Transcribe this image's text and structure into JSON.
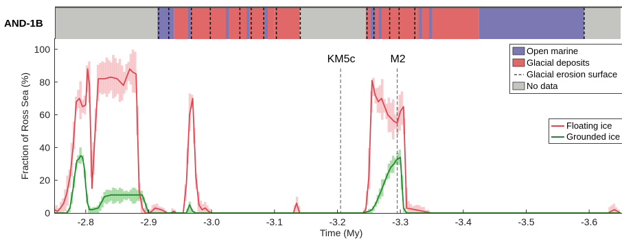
{
  "chart_data": {
    "type": "line",
    "core_band": {
      "name": "AND-1B",
      "segments": [
        {
          "from": -2.75,
          "to": -2.914,
          "env": "No data"
        },
        {
          "from": -2.914,
          "to": -2.94,
          "env": "Open marine"
        },
        {
          "from": -2.94,
          "to": -3.05,
          "env": "Glacial deposits"
        },
        {
          "from": -3.05,
          "to": -3.1,
          "env": "Glacial deposits"
        },
        {
          "from": -3.1,
          "to": -3.14,
          "env": "Glacial deposits"
        },
        {
          "from": -3.14,
          "to": -3.245,
          "env": "No data"
        },
        {
          "from": -3.245,
          "to": -3.252,
          "env": "Glacial deposits"
        },
        {
          "from": -3.252,
          "to": -3.26,
          "env": "Open marine"
        },
        {
          "from": -3.26,
          "to": -3.325,
          "env": "Glacial deposits"
        },
        {
          "from": -3.325,
          "to": -3.425,
          "env": "Glacial deposits"
        },
        {
          "from": -3.425,
          "to": -3.592,
          "env": "Open marine"
        },
        {
          "from": -3.592,
          "to": -3.65,
          "env": "No data"
        }
      ],
      "open_marine_slivers": [
        -2.965,
        -3.025,
        -3.058,
        -3.087,
        -3.268,
        -3.332,
        -3.348
      ],
      "erosion_surfaces": [
        -2.916,
        -2.932,
        -2.968,
        -2.998,
        -3.045,
        -3.063,
        -3.083,
        -3.103,
        -3.141,
        -3.247,
        -3.258,
        -3.283,
        -3.298,
        -3.323,
        -3.592
      ]
    },
    "markers": [
      {
        "label": "KM5c",
        "x": -3.205
      },
      {
        "label": "M2",
        "x": -3.295
      }
    ],
    "xlabel": "Time (My)",
    "ylabel": "Fraction of Ross Sea (%)",
    "xlim": [
      -2.75,
      -3.65
    ],
    "ylim": [
      0,
      100
    ],
    "xticks": [
      -2.8,
      -2.9,
      -3.0,
      -3.1,
      -3.2,
      -3.3,
      -3.4,
      -3.5,
      -3.6
    ],
    "xtick_labels": [
      "-2.8",
      "-2.9",
      "-3.0",
      "-3.1",
      "-3.2",
      "-3.3",
      "-3.4",
      "-3.5",
      "-3.6"
    ],
    "yticks": [
      0,
      20,
      40,
      60,
      80,
      100
    ],
    "ytick_labels": [
      "0",
      "20",
      "40",
      "60",
      "80",
      "100"
    ],
    "series": [
      {
        "name": "Floating ice",
        "color": "#e0454f",
        "x": [
          -2.75,
          -2.755,
          -2.76,
          -2.765,
          -2.77,
          -2.775,
          -2.78,
          -2.785,
          -2.79,
          -2.795,
          -2.8,
          -2.803,
          -2.806,
          -2.81,
          -2.815,
          -2.82,
          -2.83,
          -2.84,
          -2.85,
          -2.86,
          -2.87,
          -2.875,
          -2.88,
          -2.885,
          -2.89,
          -2.895,
          -2.9,
          -2.905,
          -2.91,
          -2.92,
          -2.93,
          -2.935,
          -2.94,
          -2.945,
          -2.95,
          -2.955,
          -2.96,
          -2.965,
          -2.97,
          -2.975,
          -2.98,
          -2.985,
          -2.99,
          -2.995,
          -3.0,
          -3.01,
          -3.02,
          -3.03,
          -3.04,
          -3.05,
          -3.08,
          -3.1,
          -3.13,
          -3.135,
          -3.14,
          -3.145,
          -3.15,
          -3.2,
          -3.24,
          -3.245,
          -3.25,
          -3.255,
          -3.26,
          -3.265,
          -3.27,
          -3.275,
          -3.28,
          -3.285,
          -3.29,
          -3.295,
          -3.3,
          -3.305,
          -3.31,
          -3.35,
          -3.38,
          -3.4,
          -3.5,
          -3.6,
          -3.62,
          -3.63,
          -3.64,
          -3.65
        ],
        "y": [
          2,
          1,
          3,
          6,
          12,
          22,
          40,
          68,
          70,
          65,
          66,
          88,
          78,
          15,
          50,
          82,
          82,
          83,
          82,
          78,
          88,
          86,
          85,
          14,
          3,
          0,
          0,
          1,
          3,
          2,
          0,
          0,
          1,
          0,
          0,
          0,
          18,
          60,
          70,
          22,
          5,
          2,
          3,
          1,
          0,
          0,
          0,
          0,
          0,
          0,
          0,
          0,
          0,
          6,
          0,
          0,
          0,
          0,
          0,
          2,
          22,
          81,
          72,
          68,
          70,
          65,
          60,
          58,
          56,
          55,
          62,
          65,
          3,
          0,
          0,
          0,
          0,
          0,
          0,
          0,
          2,
          0
        ]
      },
      {
        "name": "Grounded ice",
        "color": "#1f8a2b",
        "x": [
          -2.75,
          -2.76,
          -2.77,
          -2.775,
          -2.78,
          -2.783,
          -2.786,
          -2.789,
          -2.792,
          -2.795,
          -2.798,
          -2.8,
          -2.803,
          -2.806,
          -2.81,
          -2.82,
          -2.83,
          -2.84,
          -2.85,
          -2.86,
          -2.87,
          -2.88,
          -2.89,
          -2.9,
          -2.96,
          -2.965,
          -2.97,
          -2.975,
          -2.98,
          -3.0,
          -3.1,
          -3.24,
          -3.25,
          -3.255,
          -3.26,
          -3.27,
          -3.28,
          -3.285,
          -3.29,
          -3.293,
          -3.296,
          -3.3,
          -3.305,
          -3.31,
          -3.65
        ],
        "y": [
          0,
          0,
          0,
          3,
          15,
          24,
          32,
          33,
          35,
          34,
          27,
          17,
          6,
          2,
          2,
          3,
          10,
          11,
          11,
          11,
          11,
          11,
          11,
          0,
          0,
          5,
          1,
          0,
          0,
          0,
          0,
          0,
          1,
          2,
          5,
          14,
          24,
          28,
          30,
          32,
          33,
          34,
          3,
          0,
          0
        ]
      }
    ],
    "legend_environment": [
      "Open marine",
      "Glacial deposits",
      "Glacial erosion surface",
      "No data"
    ],
    "legend_ice": [
      "Floating ice",
      "Grounded ice"
    ],
    "colors": {
      "open_marine": "#7c78b3",
      "glacial_deposits": "#e06868",
      "no_data": "#c4c5c1",
      "floating_ice": "#e0454f",
      "floating_band": "#f2a4a9",
      "grounded_ice": "#1f8a2b",
      "grounded_band": "#6cc469"
    }
  }
}
